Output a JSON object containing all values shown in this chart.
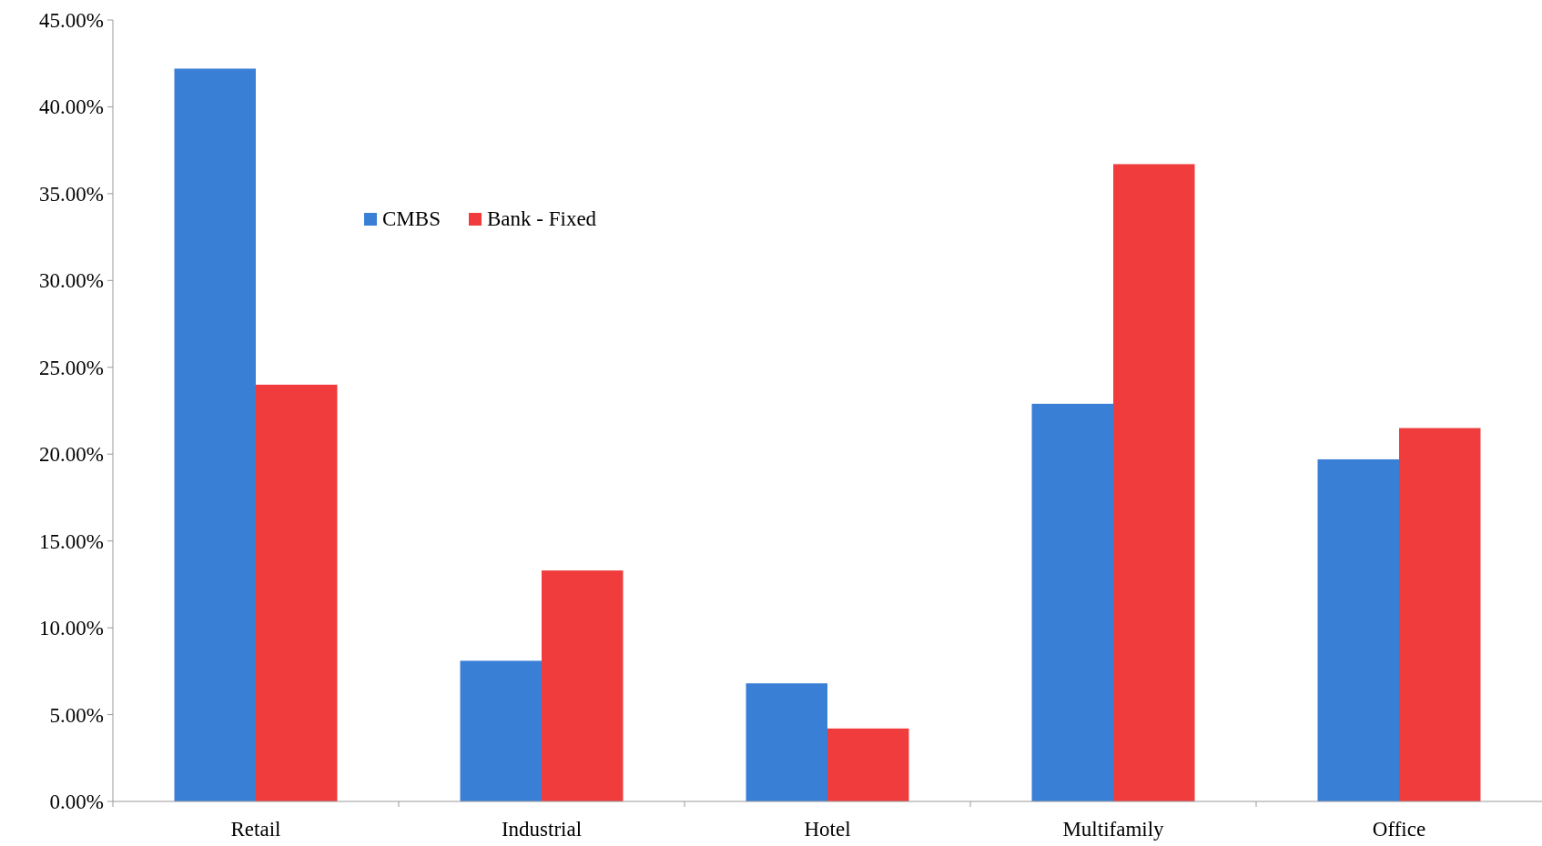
{
  "chart_data": {
    "type": "bar",
    "categories": [
      "Retail",
      "Industrial",
      "Hotel",
      "Multifamily",
      "Office"
    ],
    "series": [
      {
        "name": "CMBS",
        "color": "#3a7fd6",
        "values": [
          42.2,
          8.1,
          6.8,
          22.9,
          19.7
        ]
      },
      {
        "name": "Bank - Fixed",
        "color": "#f03c3c",
        "values": [
          24.0,
          13.3,
          4.2,
          36.7,
          21.5
        ]
      }
    ],
    "ylim": [
      0,
      45
    ],
    "yticks": [
      {
        "value": 0,
        "label": "0.00%"
      },
      {
        "value": 5,
        "label": "5.00%"
      },
      {
        "value": 10,
        "label": "10.00%"
      },
      {
        "value": 15,
        "label": "15.00%"
      },
      {
        "value": 20,
        "label": "20.00%"
      },
      {
        "value": 25,
        "label": "25.00%"
      },
      {
        "value": 30,
        "label": "30.00%"
      },
      {
        "value": 35,
        "label": "35.00%"
      },
      {
        "value": 40,
        "label": "40.00%"
      },
      {
        "value": 45,
        "label": "45.00%"
      }
    ],
    "grid": false,
    "legend": "top left"
  }
}
